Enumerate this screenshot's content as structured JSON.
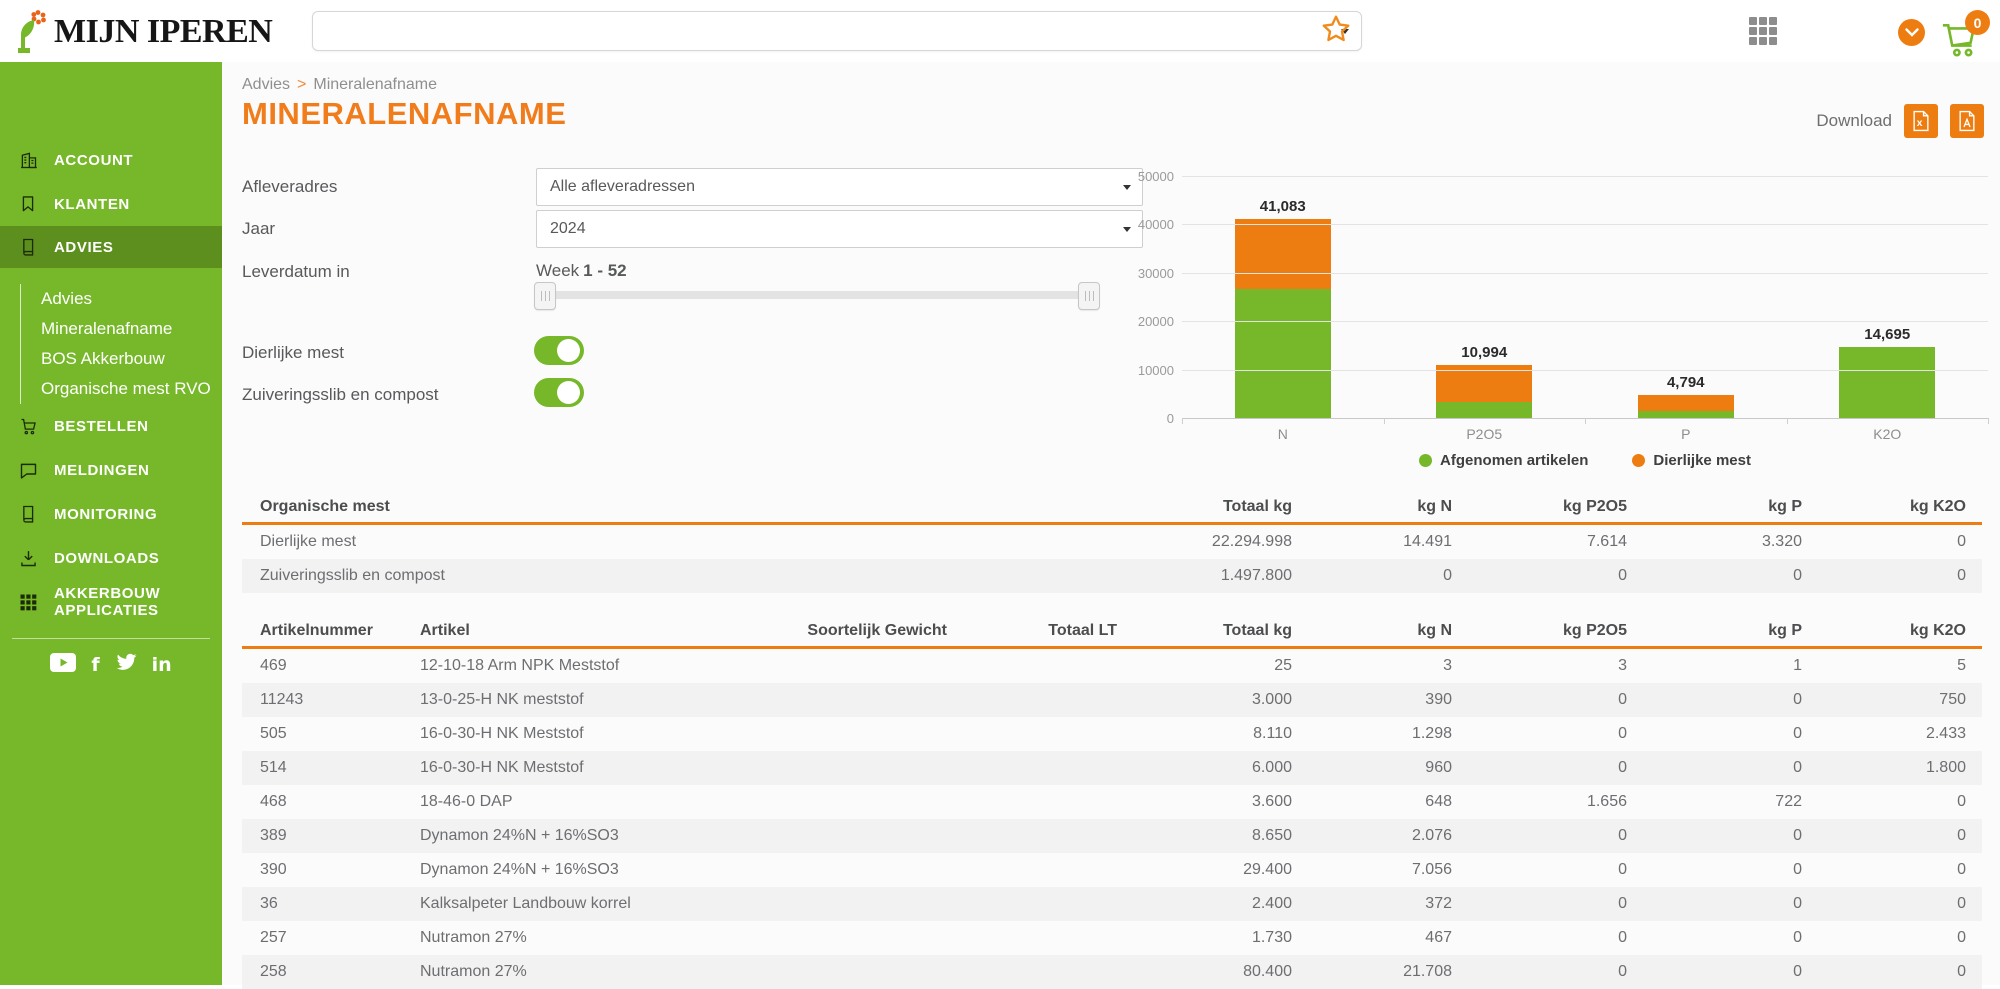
{
  "header": {
    "logo": {
      "text": "MIJN IPEREN"
    },
    "main_select": {
      "value": ""
    },
    "cart": {
      "count": "0"
    }
  },
  "sidebar": {
    "items": [
      {
        "label": "ACCOUNT",
        "icon": "building-icon",
        "active": false
      },
      {
        "label": "KLANTEN",
        "icon": "bookmark-icon",
        "active": false
      },
      {
        "label": "ADVIES",
        "icon": "book-icon",
        "active": true,
        "children": [
          "Advies",
          "Mineralenafname",
          "BOS Akkerbouw",
          "Organische mest RVO"
        ]
      },
      {
        "label": "BESTELLEN",
        "icon": "cart-icon",
        "active": false
      },
      {
        "label": "MELDINGEN",
        "icon": "chat-icon",
        "active": false
      },
      {
        "label": "MONITORING",
        "icon": "monitoring-icon",
        "active": false
      },
      {
        "label": "DOWNLOADS",
        "icon": "download-icon",
        "active": false
      },
      {
        "label": "AKKERBOUW APPLICATIES",
        "icon": "apps-icon",
        "active": false
      }
    ],
    "social": [
      {
        "name": "youtube-icon",
        "glyph": ""
      },
      {
        "name": "facebook-icon",
        "glyph": "f"
      },
      {
        "name": "twitter-icon",
        "glyph": ""
      },
      {
        "name": "linkedin-icon",
        "glyph": "in"
      }
    ]
  },
  "breadcrumb": {
    "parts": [
      "Advies",
      "Mineralenafname"
    ],
    "separator": ">"
  },
  "page": {
    "title": "MINERALENAFNAME",
    "download": {
      "label": "Download",
      "excel_glyph": "x"
    }
  },
  "filters": {
    "afleveradres_label": "Afleveradres",
    "afleveradres_value": "Alle afleveradressen",
    "jaar_label": "Jaar",
    "jaar_value": "2024",
    "leverdatum_label": "Leverdatum in",
    "leverdatum_prefix": "Week",
    "leverdatum_range": "1 - 52",
    "toggles": [
      {
        "label": "Dierlijke mest",
        "on": true
      },
      {
        "label": "Zuiveringsslib en compost",
        "on": true
      }
    ]
  },
  "chart_data": {
    "type": "bar",
    "stacked": true,
    "categories": [
      "N",
      "P2O5",
      "P",
      "K2O"
    ],
    "series": [
      {
        "name": "Afgenomen artikelen",
        "color": "#76b82a",
        "values": [
          26592,
          3380,
          1474,
          14695
        ]
      },
      {
        "name": "Dierlijke mest",
        "color": "#ee7d11",
        "values": [
          14491,
          7614,
          3320,
          0
        ]
      }
    ],
    "totals": [
      41083,
      10994,
      4794,
      14695
    ],
    "total_labels": [
      "41,083",
      "10,994",
      "4,794",
      "14,695"
    ],
    "ylim": [
      0,
      50000
    ],
    "yticks": [
      0,
      10000,
      20000,
      30000,
      40000,
      50000
    ],
    "grid": true,
    "legend_position": "bottom"
  },
  "tables": {
    "organische_mest": {
      "title": "Organische mest",
      "columns": [
        "Totaal kg",
        "kg N",
        "kg P2O5",
        "kg P",
        "kg K2O"
      ],
      "rows": [
        {
          "label": "Dierlijke mest",
          "values": [
            "22.294.998",
            "14.491",
            "7.614",
            "3.320",
            "0"
          ]
        },
        {
          "label": "Zuiveringsslib en compost",
          "values": [
            "1.497.800",
            "0",
            "0",
            "0",
            "0"
          ]
        }
      ]
    },
    "artikelen": {
      "columns": [
        "Artikelnummer",
        "Artikel",
        "Soortelijk Gewicht",
        "Totaal LT",
        "Totaal kg",
        "kg N",
        "kg P2O5",
        "kg P",
        "kg K2O"
      ],
      "rows": [
        [
          "469",
          "12-10-18 Arm NPK Meststof",
          "",
          "",
          "25",
          "3",
          "3",
          "1",
          "5"
        ],
        [
          "11243",
          "13-0-25-H NK meststof",
          "",
          "",
          "3.000",
          "390",
          "0",
          "0",
          "750"
        ],
        [
          "505",
          "16-0-30-H NK Meststof",
          "",
          "",
          "8.110",
          "1.298",
          "0",
          "0",
          "2.433"
        ],
        [
          "514",
          "16-0-30-H NK Meststof",
          "",
          "",
          "6.000",
          "960",
          "0",
          "0",
          "1.800"
        ],
        [
          "468",
          "18-46-0 DAP",
          "",
          "",
          "3.600",
          "648",
          "1.656",
          "722",
          "0"
        ],
        [
          "389",
          "Dynamon 24%N + 16%SO3",
          "",
          "",
          "8.650",
          "2.076",
          "0",
          "0",
          "0"
        ],
        [
          "390",
          "Dynamon 24%N + 16%SO3",
          "",
          "",
          "29.400",
          "7.056",
          "0",
          "0",
          "0"
        ],
        [
          "36",
          "Kalksalpeter Landbouw korrel",
          "",
          "",
          "2.400",
          "372",
          "0",
          "0",
          "0"
        ],
        [
          "257",
          "Nutramon 27%",
          "",
          "",
          "1.730",
          "467",
          "0",
          "0",
          "0"
        ],
        [
          "258",
          "Nutramon 27%",
          "",
          "",
          "80.400",
          "21.708",
          "0",
          "0",
          "0"
        ]
      ]
    }
  }
}
